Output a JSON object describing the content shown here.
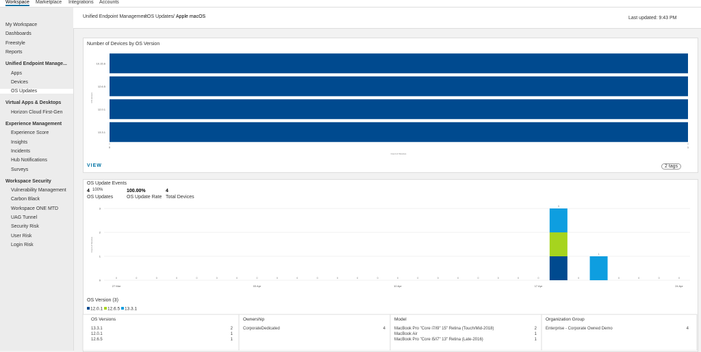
{
  "topnav": {
    "tabs": [
      "Workspace",
      "Marketplace",
      "Integrations",
      "Accounts"
    ]
  },
  "sidebar": {
    "top": [
      "My Workspace",
      "Dashboards",
      "Freestyle",
      "Reports"
    ],
    "sections": [
      {
        "title": "Unified Endpoint Manage...",
        "items": [
          "Apps",
          "Devices",
          "OS Updates"
        ]
      },
      {
        "title": "Virtual Apps & Desktops",
        "items": [
          "Horizon Cloud First-Gen"
        ]
      },
      {
        "title": "Experience Management",
        "items": [
          "Experience Score",
          "Insights",
          "Incidents",
          "Hub Notifications",
          "Surveys"
        ]
      },
      {
        "title": "Workspace Security",
        "items": [
          "Vulnerability Management",
          "Carbon Black",
          "Workspace ONE MTD",
          "UAG Tunnel",
          "Security Risk",
          "User Risk",
          "Login Risk"
        ]
      }
    ]
  },
  "header": {
    "breadcrumb": [
      "Unified Endpoint Management",
      "OS Updates",
      "Apple macOS"
    ],
    "last_updated": "Last updated: 9:43 PM"
  },
  "widget1": {
    "footer_link": "VIEW",
    "tags": "2 tags"
  },
  "widget2": {
    "stats": [
      {
        "value": 4,
        "extra": "100%",
        "label": "OS Updates"
      },
      {
        "value": "100.00%",
        "label": "OS Update Rate"
      },
      {
        "value": 4,
        "label": "Total Devices"
      }
    ],
    "legend_title": "OS Version (3)"
  },
  "table": {
    "headers": [
      "OS Versions",
      "Ownership",
      "Model",
      "Organization Group"
    ],
    "os_versions": [
      [
        "13.3.1",
        2
      ],
      [
        "12.0.1",
        1
      ],
      [
        "12.6.5",
        1
      ]
    ],
    "ownership": [
      [
        "CorporateDedicated",
        4
      ]
    ],
    "model": [
      [
        "MacBook Pro \"Core i7/i9\" 15\" Retina (Touch/Mid-2018)",
        2
      ],
      [
        "MacBook Air",
        1
      ],
      [
        "MacBook Pro \"Core i5/i7\" 13\" Retina (Late-2016)",
        1
      ]
    ],
    "organization_group": [
      [
        "Enterprise - Corporate Owned Demo",
        4
      ]
    ]
  },
  "chart_data": [
    {
      "type": "hbar",
      "title": "Number of Devices by OS Version",
      "x_label": "Count of Devices",
      "y_label": "OS Version",
      "categories": [
        "10.15.6",
        "12.6.5",
        "12.0.1",
        "13.3.1"
      ],
      "values": [
        1,
        1,
        1,
        1
      ],
      "color": "#004a8f",
      "xlim": [
        0,
        1
      ],
      "xticks": [
        0,
        1
      ]
    },
    {
      "type": "stacked_bar",
      "title": "OS Update Events",
      "y_label": "Count of Devices",
      "categories": [
        "27 Mar",
        null,
        null,
        null,
        null,
        null,
        null,
        "03 Apr",
        null,
        null,
        null,
        null,
        null,
        null,
        "10 Apr",
        null,
        null,
        null,
        null,
        null,
        null,
        "17 Apr",
        null,
        null,
        null,
        null,
        null,
        null,
        "24 Apr"
      ],
      "series": [
        {
          "name": "12.0.1",
          "color": "#004a8f",
          "values": [
            0,
            0,
            0,
            0,
            0,
            0,
            0,
            0,
            0,
            0,
            0,
            0,
            0,
            0,
            0,
            0,
            0,
            0,
            0,
            0,
            0,
            0,
            1,
            0,
            0,
            0,
            0,
            0,
            0
          ]
        },
        {
          "name": "12.6.5",
          "color": "#a6d41e",
          "values": [
            0,
            0,
            0,
            0,
            0,
            0,
            0,
            0,
            0,
            0,
            0,
            0,
            0,
            0,
            0,
            0,
            0,
            0,
            0,
            0,
            0,
            0,
            1,
            0,
            0,
            0,
            0,
            0,
            0
          ]
        },
        {
          "name": "13.3.1",
          "color": "#0e9ee0",
          "values": [
            0,
            0,
            0,
            0,
            0,
            0,
            0,
            0,
            0,
            0,
            0,
            0,
            0,
            0,
            0,
            0,
            0,
            0,
            0,
            0,
            0,
            0,
            1,
            0,
            1,
            0,
            0,
            0,
            0
          ]
        }
      ],
      "total_labels": [
        0,
        0,
        0,
        0,
        0,
        0,
        0,
        0,
        0,
        0,
        0,
        0,
        0,
        0,
        0,
        0,
        0,
        0,
        0,
        0,
        0,
        0,
        3,
        0,
        1,
        0,
        0,
        0,
        0
      ],
      "ylim": [
        0,
        3
      ],
      "yticks": [
        0,
        1,
        2,
        3
      ],
      "grid": true
    }
  ]
}
